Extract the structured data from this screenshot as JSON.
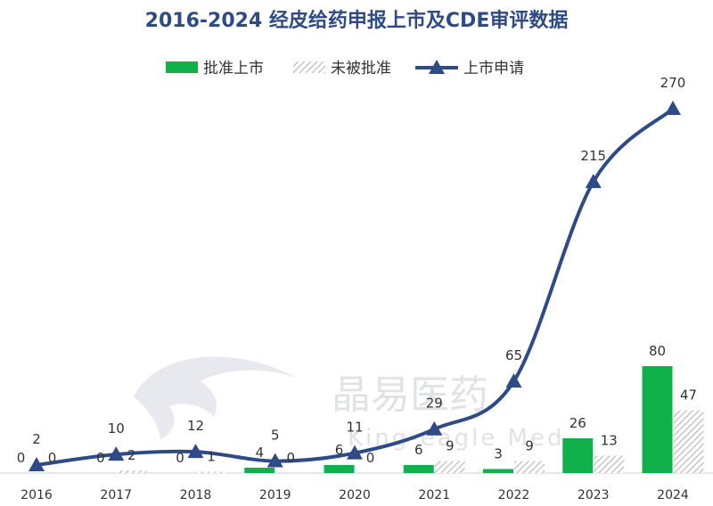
{
  "chart_data": {
    "type": "bar",
    "title": "2016-2024 经皮给药申报上市及CDE审评数据",
    "categories": [
      "2016",
      "2017",
      "2018",
      "2019",
      "2020",
      "2021",
      "2022",
      "2023",
      "2024"
    ],
    "series": [
      {
        "name": "批准上市",
        "kind": "bar",
        "color": "#10b04b",
        "values": [
          0,
          0,
          0,
          4,
          6,
          6,
          3,
          26,
          80
        ]
      },
      {
        "name": "未被批准",
        "kind": "bar",
        "color": "#9a9a9a",
        "pattern": "hatched",
        "values": [
          0,
          2,
          1,
          0,
          0,
          9,
          9,
          13,
          47
        ]
      },
      {
        "name": "上市申请",
        "kind": "line",
        "color": "#2f4b86",
        "marker": "triangle",
        "values": [
          2,
          10,
          12,
          5,
          11,
          29,
          65,
          215,
          270
        ]
      }
    ],
    "legend_position": "top",
    "grid": false,
    "bar_ylim": [
      0,
      300
    ],
    "line_ylim": [
      0,
      320
    ]
  },
  "watermark": {
    "text": "晶易医药",
    "subtext": "King-eagle Med"
  }
}
